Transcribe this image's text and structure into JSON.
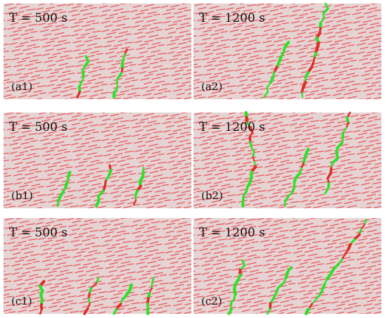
{
  "panels": [
    {
      "time": "T = 500 s",
      "label": "(a1)"
    },
    {
      "time": "T = 1200 s",
      "label": "(a2)"
    },
    {
      "time": "T = 500 s",
      "label": "(b1)"
    },
    {
      "time": "T = 1200 s",
      "label": "(b2)"
    },
    {
      "time": "T = 500 s",
      "label": "(c1)"
    },
    {
      "time": "T = 1200 s",
      "label": "(c2)"
    }
  ]
}
